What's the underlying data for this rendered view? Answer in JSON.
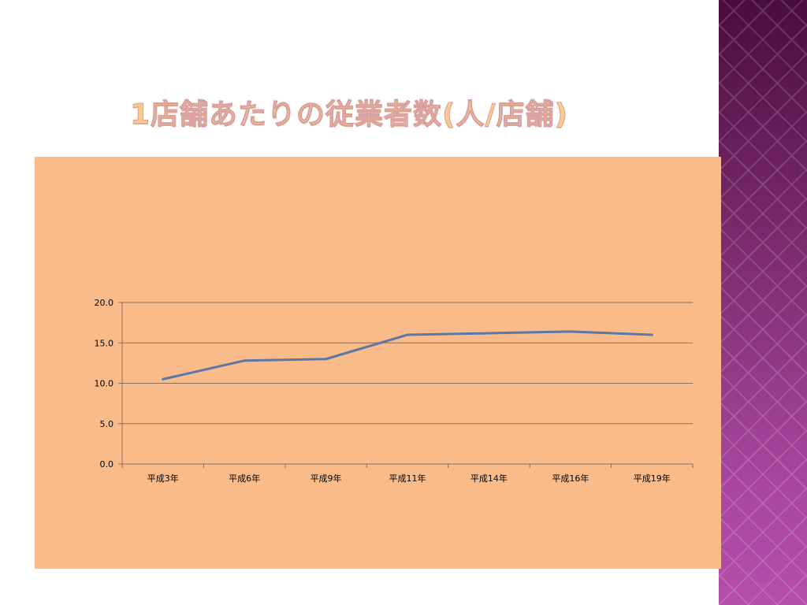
{
  "slide": {
    "title": "1店舗あたりの従業者数(人/店舗)"
  },
  "colors": {
    "panel": "#f9bb8a",
    "line": "#5b77a6",
    "grid": "#8b6e5a",
    "sidebar": "#7a2c6c"
  },
  "chart_data": {
    "type": "line",
    "title": "1店舗あたりの従業者数(人/店舗)",
    "categories": [
      "平成3年",
      "平成6年",
      "平成9年",
      "平成11年",
      "平成14年",
      "平成16年",
      "平成19年"
    ],
    "series": [
      {
        "values": [
          10.5,
          12.8,
          13.0,
          16.0,
          16.2,
          16.4,
          16.0
        ]
      }
    ],
    "ylim": [
      0,
      20
    ],
    "yticks": [
      "0.0",
      "5.0",
      "10.0",
      "15.0",
      "20.0"
    ],
    "grid": true,
    "legend": "none"
  }
}
